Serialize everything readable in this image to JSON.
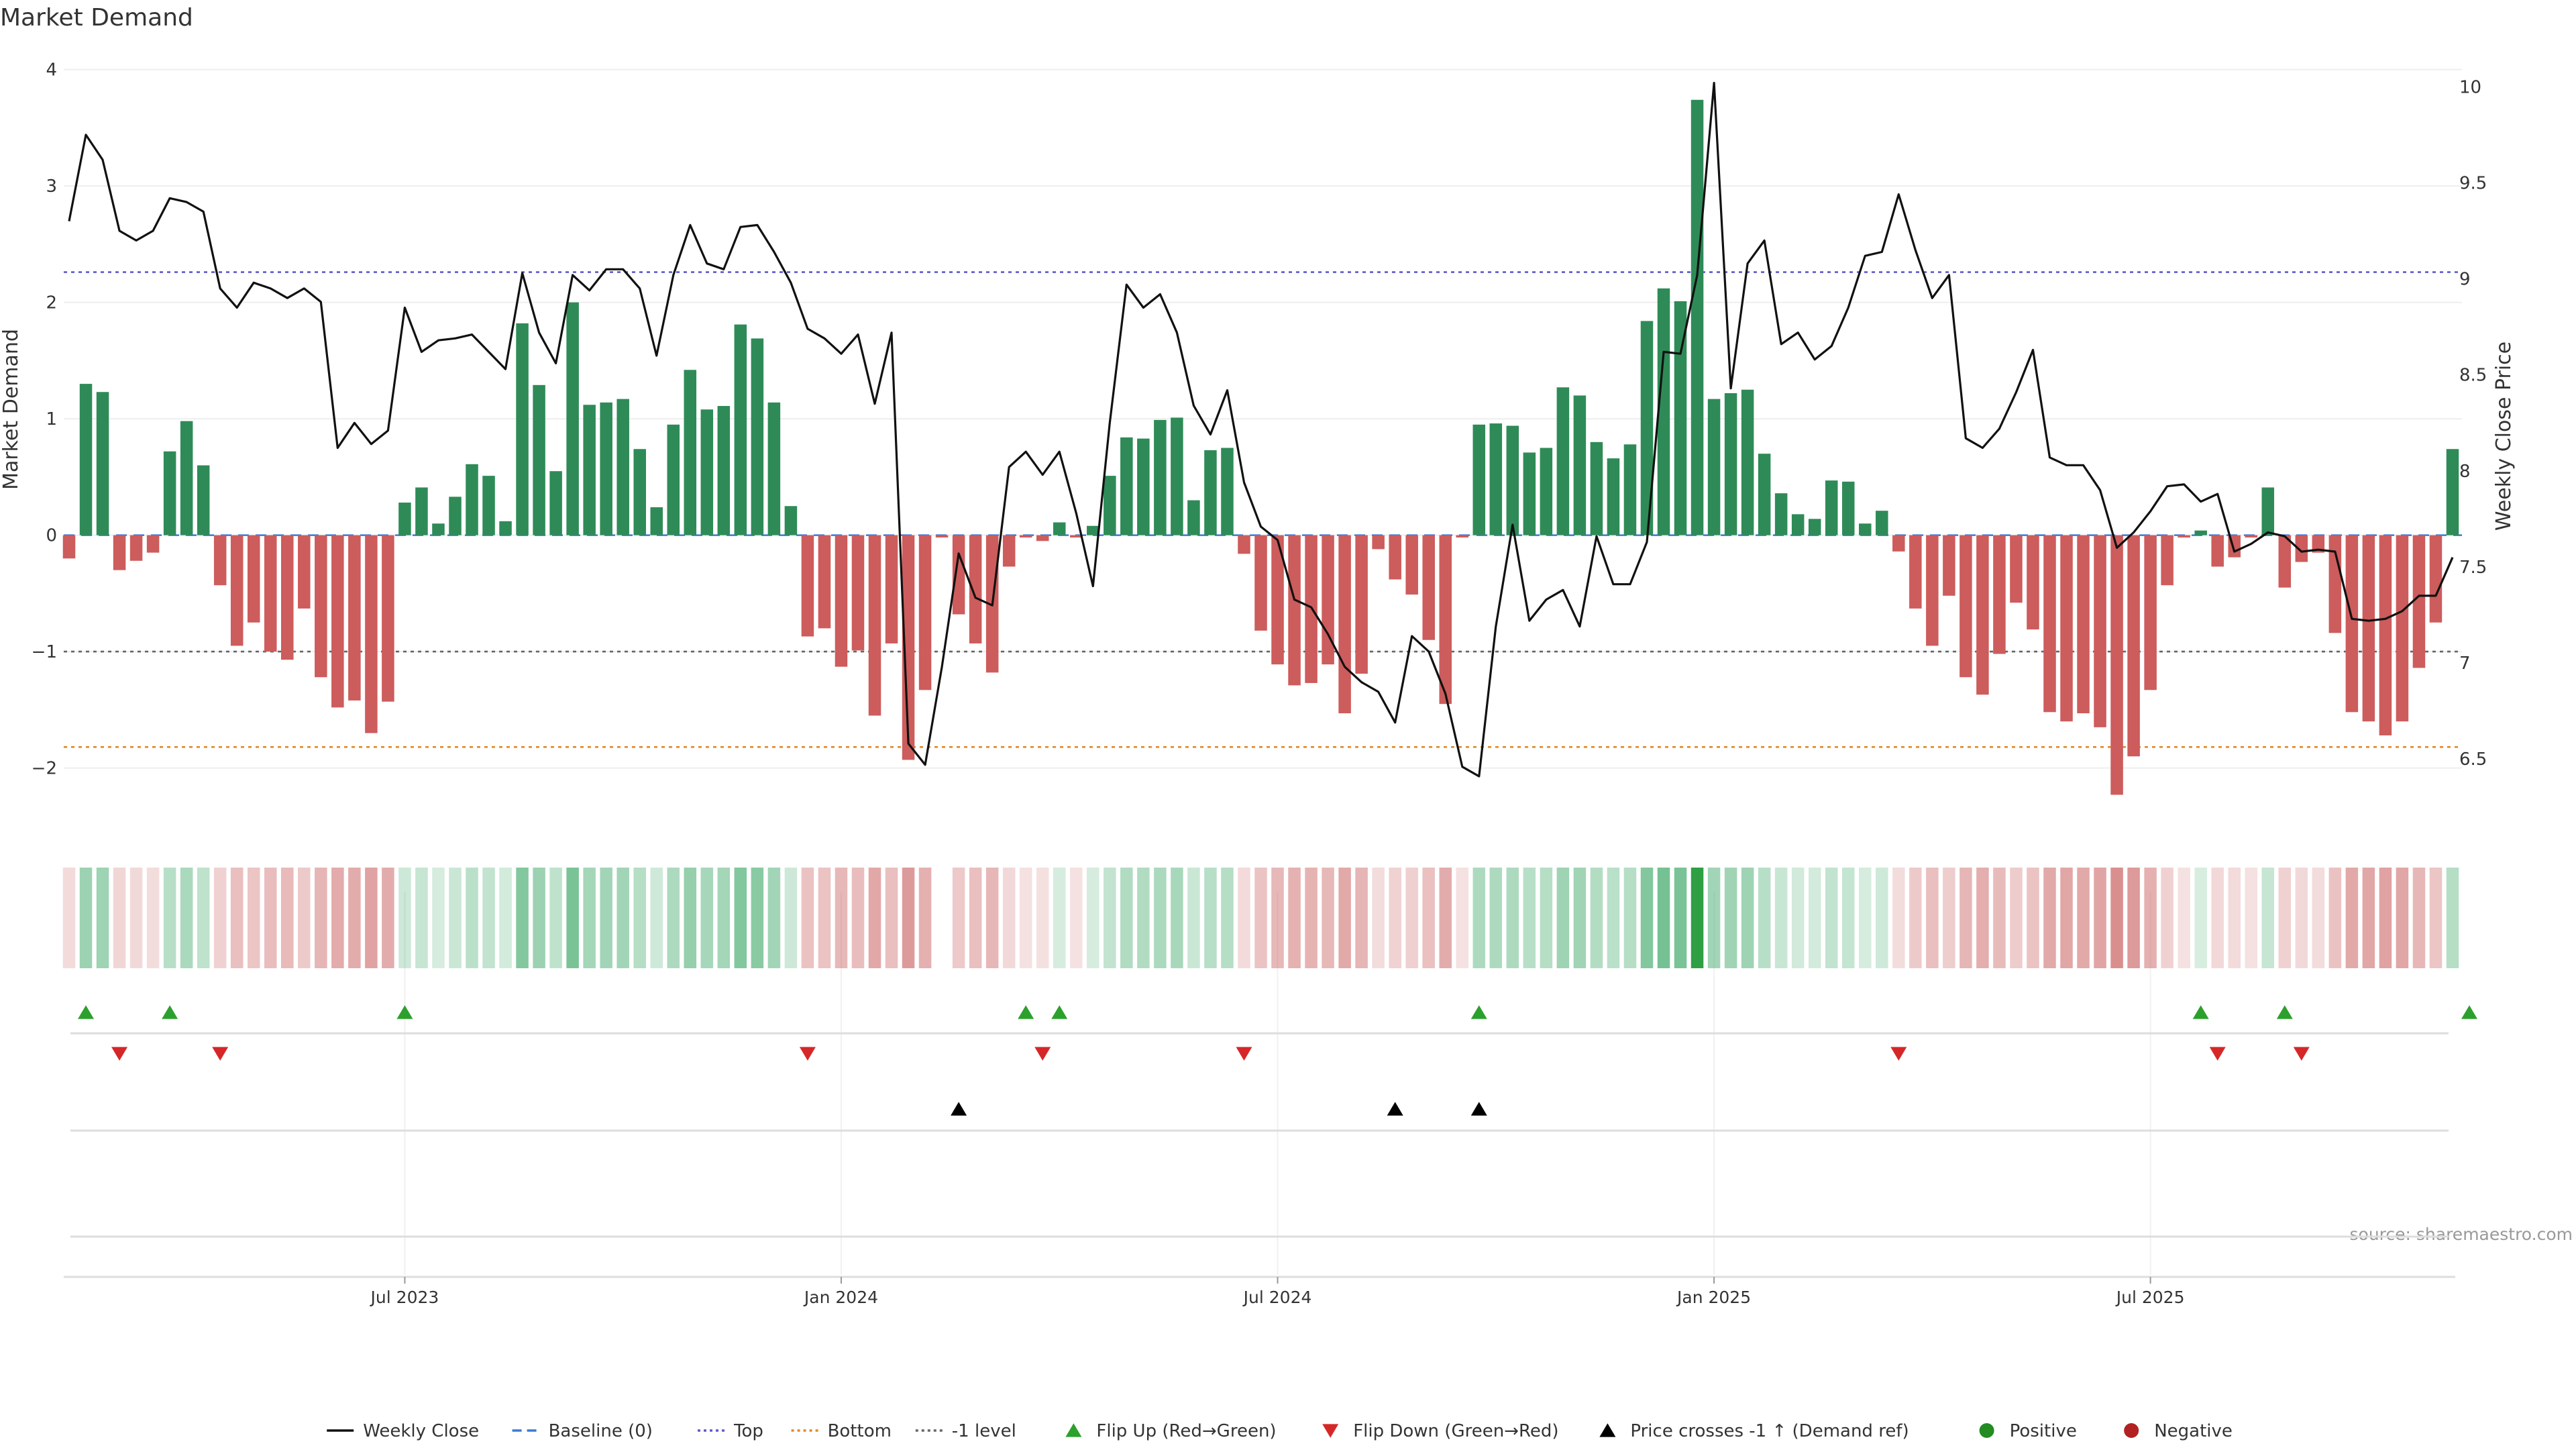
{
  "chart_data": {
    "type": "bar",
    "title": "Market Demand",
    "ylabel_left": "Market Demand",
    "ylabel_right": "Weekly Close Price",
    "ylim_left": [
      -2.55,
      4.05
    ],
    "ylim_right": [
      6.12,
      10.12
    ],
    "yticks_left": [
      "4",
      "3",
      "2",
      "1",
      "0",
      "−1",
      "−2"
    ],
    "yticks_left_values": [
      4,
      3,
      2,
      1,
      0,
      -1,
      -2
    ],
    "yticks_right": [
      "10",
      "9.5",
      "9",
      "8.5",
      "8",
      "7.5",
      "7",
      "6.5"
    ],
    "yticks_right_values": [
      10,
      9.5,
      9,
      8.5,
      8,
      7.5,
      7,
      6.5
    ],
    "x_ticks": [
      "Jul 2023",
      "Jan 2024",
      "Jul 2024",
      "Jan 2025",
      "Jul 2025"
    ],
    "x_tick_index": [
      20,
      46,
      72,
      98,
      124
    ],
    "reference_lines": [
      {
        "name": "Top",
        "value": 2.26,
        "color": "#5c5ccc"
      },
      {
        "name": "-1 level",
        "value": -1.0,
        "color": "#666666"
      },
      {
        "name": "Bottom",
        "value": -1.82,
        "color": "#e08a2a"
      },
      {
        "name": "Baseline (0)",
        "value": 0,
        "color": "#3a7bd5"
      }
    ],
    "demand": [
      -0.2,
      1.3,
      1.23,
      -0.3,
      -0.22,
      -0.15,
      0.72,
      0.98,
      0.6,
      -0.43,
      -0.95,
      -0.75,
      -1.0,
      -1.07,
      -0.63,
      -1.22,
      -1.48,
      -1.42,
      -1.7,
      -1.43,
      0.28,
      0.41,
      0.1,
      0.33,
      0.61,
      0.51,
      0.12,
      1.82,
      1.29,
      0.55,
      2.0,
      1.12,
      1.14,
      1.17,
      0.74,
      0.24,
      0.95,
      1.42,
      1.08,
      1.11,
      1.81,
      1.69,
      1.14,
      0.25,
      -0.87,
      -0.8,
      -1.13,
      -0.99,
      -1.55,
      -0.93,
      -1.93,
      -1.33,
      -0.02,
      -0.68,
      -0.93,
      -1.18,
      -0.27,
      -0.02,
      -0.05,
      0.11,
      -0.02,
      0.08,
      0.51,
      0.84,
      0.83,
      0.99,
      1.01,
      0.3,
      0.73,
      0.75,
      -0.16,
      -0.82,
      -1.11,
      -1.29,
      -1.27,
      -1.11,
      -1.53,
      -1.19,
      -0.12,
      -0.38,
      -0.51,
      -0.9,
      -1.45,
      -0.02,
      0.95,
      0.96,
      0.94,
      0.71,
      0.75,
      1.27,
      1.2,
      0.8,
      0.66,
      0.78,
      1.84,
      2.12,
      2.01,
      3.74,
      1.17,
      1.22,
      1.25,
      0.7,
      0.36,
      0.18,
      0.14,
      0.47,
      0.46,
      0.1,
      0.21,
      -0.14,
      -0.63,
      -0.95,
      -0.52,
      -1.22,
      -1.37,
      -1.02,
      -0.58,
      -0.81,
      -1.52,
      -1.6,
      -1.53,
      -1.65,
      -2.23,
      -1.9,
      -1.33,
      -0.43,
      -0.02,
      0.04,
      -0.27,
      -0.19,
      -0.02,
      0.41,
      -0.45,
      -0.23,
      -0.15,
      -0.84,
      -1.52,
      -1.6,
      -1.72,
      -1.6,
      -1.14,
      -0.75,
      0.74
    ],
    "weekly_close": [
      9.3,
      9.75,
      9.62,
      9.25,
      9.2,
      9.25,
      9.42,
      9.4,
      9.35,
      8.95,
      8.85,
      8.98,
      8.95,
      8.9,
      8.95,
      8.88,
      8.12,
      8.25,
      8.14,
      8.21,
      8.85,
      8.62,
      8.68,
      8.69,
      8.71,
      8.62,
      8.53,
      9.03,
      8.72,
      8.56,
      9.02,
      8.94,
      9.05,
      9.05,
      8.95,
      8.6,
      9.02,
      9.28,
      9.08,
      9.05,
      9.27,
      9.28,
      9.14,
      8.98,
      8.74,
      8.69,
      8.61,
      8.71,
      8.35,
      8.72,
      6.58,
      6.47,
      6.98,
      7.57,
      7.34,
      7.3,
      8.02,
      8.1,
      7.98,
      8.1,
      7.78,
      7.4,
      8.25,
      8.97,
      8.85,
      8.92,
      8.72,
      8.34,
      8.19,
      8.42,
      7.94,
      7.71,
      7.64,
      7.33,
      7.29,
      7.15,
      6.98,
      6.9,
      6.85,
      6.69,
      7.14,
      7.06,
      6.84,
      6.46,
      6.41,
      7.19,
      7.72,
      7.22,
      7.33,
      7.38,
      7.19,
      7.66,
      7.41,
      7.41,
      7.63,
      8.62,
      8.61,
      9.02,
      10.02,
      8.43,
      9.08,
      9.2,
      8.66,
      8.72,
      8.58,
      8.65,
      8.85,
      9.12,
      9.14,
      9.44,
      9.15,
      8.9,
      9.02,
      8.17,
      8.12,
      8.22,
      8.41,
      8.63,
      8.07,
      8.03,
      8.03,
      7.9,
      7.6,
      7.68,
      7.79,
      7.92,
      7.93,
      7.84,
      7.88,
      7.58,
      7.62,
      7.68,
      7.66,
      7.58,
      7.59,
      7.58,
      7.23,
      7.22,
      7.23,
      7.27,
      7.35,
      7.35,
      7.55
    ],
    "flip_up_index": [
      1,
      6,
      20,
      57,
      59,
      84,
      127,
      132,
      143
    ],
    "flip_down_index": [
      3,
      9,
      44,
      58,
      70,
      109,
      128,
      133
    ],
    "price_cross_index": [
      53,
      79,
      84
    ],
    "heat_gap_index": [
      52
    ],
    "legend": [
      "Weekly Close",
      "Baseline (0)",
      "Top",
      "Bottom",
      "-1 level",
      "Flip Up (Red→Green)",
      "Flip Down (Green→Red)",
      "Price crosses -1 ↑ (Demand ref)",
      "Positive",
      "Negative"
    ],
    "source": "source: sharemaestro.com",
    "colors": {
      "positive": "#2e8b57",
      "negative": "#cd5c5c",
      "line": "#111111",
      "flip_up": "#2ca02c",
      "flip_down": "#d62728",
      "cross": "#000000",
      "legend_positive": "#228b22",
      "legend_negative": "#b22222"
    }
  }
}
